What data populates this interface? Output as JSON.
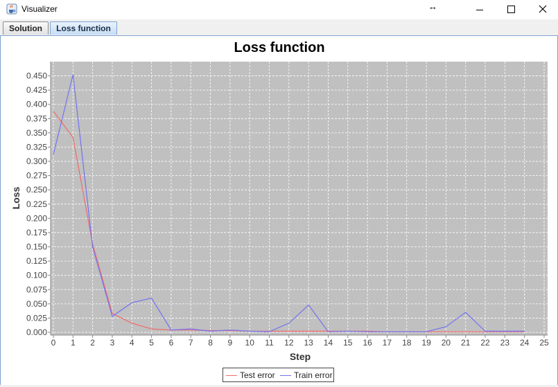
{
  "window": {
    "title": "Visualizer",
    "app_icon": "java-cup-icon",
    "controls": [
      "resize-arrows-icon",
      "minimize-icon",
      "maximize-icon",
      "close-icon"
    ],
    "resize_glyph": "↔"
  },
  "tabs": [
    {
      "label": "Solution",
      "selected": false
    },
    {
      "label": "Loss function",
      "selected": true
    }
  ],
  "colors": {
    "plot_background": "#c0c0c0",
    "gridline": "#ffffff",
    "test_series": "#ef6a6a",
    "train_series": "#7272f2"
  },
  "chart_data": {
    "type": "line",
    "title": "Loss function",
    "xlabel": "Step",
    "ylabel": "Loss",
    "xlim": [
      0,
      25
    ],
    "ylim": [
      0,
      0.475
    ],
    "grid": true,
    "legend_position": "bottom-center",
    "x_ticks": [
      "0",
      "1",
      "2",
      "3",
      "4",
      "5",
      "6",
      "7",
      "8",
      "9",
      "10",
      "11",
      "12",
      "13",
      "14",
      "15",
      "16",
      "17",
      "18",
      "19",
      "20",
      "21",
      "22",
      "23",
      "24",
      "25"
    ],
    "y_ticks": [
      "0.000",
      "0.025",
      "0.050",
      "0.075",
      "0.100",
      "0.125",
      "0.150",
      "0.175",
      "0.200",
      "0.225",
      "0.250",
      "0.275",
      "0.300",
      "0.325",
      "0.350",
      "0.375",
      "0.400",
      "0.425",
      "0.450"
    ],
    "x": [
      0,
      1,
      2,
      3,
      4,
      5,
      6,
      7,
      8,
      9,
      10,
      11,
      12,
      13,
      14,
      15,
      16,
      17,
      18,
      19,
      20,
      21,
      22,
      23,
      24
    ],
    "series": [
      {
        "name": "Test error",
        "values": [
          0.388,
          0.342,
          0.155,
          0.033,
          0.016,
          0.006,
          0.004,
          0.004,
          0.003,
          0.003,
          0.002,
          0.002,
          0.002,
          0.002,
          0.002,
          0.002,
          0.002,
          0.001,
          0.001,
          0.001,
          0.001,
          0.001,
          0.001,
          0.001,
          0.001
        ]
      },
      {
        "name": "Train error",
        "values": [
          0.312,
          0.452,
          0.15,
          0.028,
          0.052,
          0.06,
          0.004,
          0.006,
          0.002,
          0.004,
          0.002,
          0.001,
          0.016,
          0.048,
          0.001,
          0.002,
          0.001,
          0.001,
          0.001,
          0.001,
          0.01,
          0.035,
          0.002,
          0.002,
          0.002
        ]
      }
    ]
  }
}
